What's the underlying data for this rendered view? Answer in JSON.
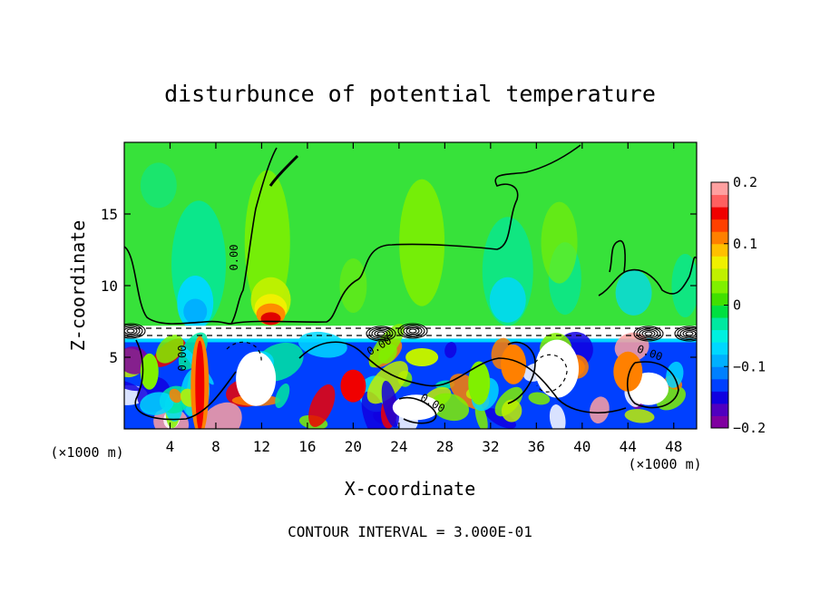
{
  "chart_data": {
    "type": "heatmap",
    "title": "disturbunce of potential temperature",
    "xlabel": "X-coordinate",
    "ylabel": "Z-coordinate",
    "x_unit_left": "(×1000 m)",
    "x_unit_right": "(×1000 m)",
    "footer": "CONTOUR INTERVAL = 3.000E-01",
    "xlim": [
      0,
      50
    ],
    "ylim": [
      0,
      20
    ],
    "x_ticks": [
      4,
      8,
      12,
      16,
      20,
      24,
      28,
      32,
      36,
      40,
      44,
      48
    ],
    "y_ticks": [
      5,
      10,
      15
    ],
    "contour_labels": [
      "0.00",
      "0.00",
      "0.00",
      "0.00",
      "0.00"
    ],
    "colorbar": {
      "min": -0.2,
      "max": 0.2,
      "tick_values": [
        0.2,
        0.1,
        0,
        -0.1,
        -0.2
      ],
      "tick_labels": [
        "0.2",
        "0.1",
        "0",
        "−0.1",
        "−0.2"
      ],
      "levels": [
        {
          "value": -0.19,
          "color": "#8000a0"
        },
        {
          "value": -0.17,
          "color": "#5000c0"
        },
        {
          "value": -0.15,
          "color": "#1000e0"
        },
        {
          "value": -0.13,
          "color": "#0040ff"
        },
        {
          "value": -0.11,
          "color": "#0080ff"
        },
        {
          "value": -0.09,
          "color": "#00b0ff"
        },
        {
          "value": -0.07,
          "color": "#00d8ff"
        },
        {
          "value": -0.05,
          "color": "#00f0e0"
        },
        {
          "value": -0.03,
          "color": "#00e8a0"
        },
        {
          "value": -0.01,
          "color": "#00e040"
        },
        {
          "value": 0.01,
          "color": "#40e000"
        },
        {
          "value": 0.03,
          "color": "#80f000"
        },
        {
          "value": 0.05,
          "color": "#c0f000"
        },
        {
          "value": 0.07,
          "color": "#f0f000"
        },
        {
          "value": 0.09,
          "color": "#ffc000"
        },
        {
          "value": 0.11,
          "color": "#ff8000"
        },
        {
          "value": 0.13,
          "color": "#ff4000"
        },
        {
          "value": 0.15,
          "color": "#f00000"
        },
        {
          "value": 0.17,
          "color": "#ff6060"
        },
        {
          "value": 0.19,
          "color": "#ffa0a0"
        }
      ]
    },
    "field_colors": {
      "upper_base": "#37e23a",
      "warm_blob": "#ff8c00",
      "warm_core": "#e00000",
      "light_green": "#80f000",
      "yellow_green": "#c0f000",
      "cyan": "#00d8ff",
      "teal": "#00e8a0",
      "blue": "#0040ff",
      "dark_blue": "#1000e0",
      "purple": "#8000a0",
      "orange": "#ff8000",
      "red": "#f00000",
      "pink": "#ffa0a0",
      "white": "#ffffff"
    }
  }
}
